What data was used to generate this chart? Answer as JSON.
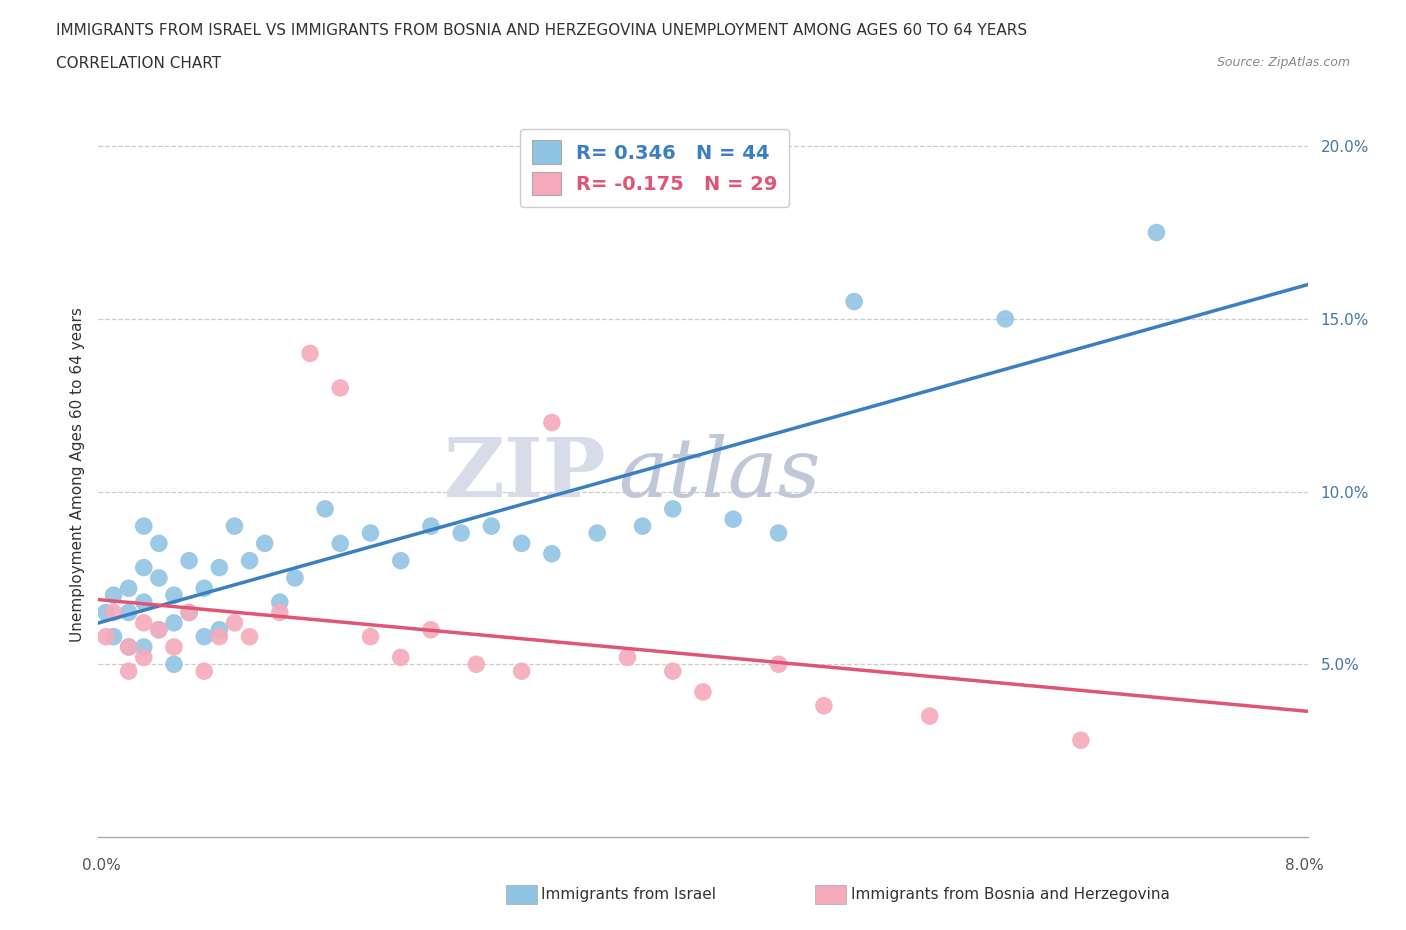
{
  "title_line1": "IMMIGRANTS FROM ISRAEL VS IMMIGRANTS FROM BOSNIA AND HERZEGOVINA UNEMPLOYMENT AMONG AGES 60 TO 64 YEARS",
  "title_line2": "CORRELATION CHART",
  "source": "Source: ZipAtlas.com",
  "ylabel": "Unemployment Among Ages 60 to 64 years",
  "xlim": [
    0.0,
    0.08
  ],
  "ylim": [
    0.0,
    0.21
  ],
  "yticks": [
    0.05,
    0.1,
    0.15,
    0.2
  ],
  "ytick_labels": [
    "5.0%",
    "10.0%",
    "15.0%",
    "20.0%"
  ],
  "xtick_labels": [
    "0.0%",
    "8.0%"
  ],
  "israel_color": "#90C4E4",
  "bosnia_color": "#F5AABB",
  "israel_line_color": "#3A7FC1",
  "bosnia_line_color": "#E05575",
  "israel_R": 0.346,
  "israel_N": 44,
  "bosnia_R": -0.175,
  "bosnia_N": 29,
  "legend_israel": "Immigrants from Israel",
  "legend_bosnia": "Immigrants from Bosnia and Herzegovina",
  "watermark_ZIP": "ZIP",
  "watermark_atlas": "atlas",
  "israel_x": [
    0.0005,
    0.001,
    0.001,
    0.002,
    0.002,
    0.002,
    0.003,
    0.003,
    0.003,
    0.003,
    0.004,
    0.004,
    0.004,
    0.005,
    0.005,
    0.005,
    0.006,
    0.006,
    0.007,
    0.007,
    0.008,
    0.008,
    0.009,
    0.01,
    0.011,
    0.012,
    0.013,
    0.015,
    0.016,
    0.018,
    0.02,
    0.022,
    0.024,
    0.026,
    0.028,
    0.03,
    0.033,
    0.036,
    0.038,
    0.042,
    0.045,
    0.05,
    0.06,
    0.07
  ],
  "israel_y": [
    0.065,
    0.07,
    0.058,
    0.072,
    0.065,
    0.055,
    0.09,
    0.078,
    0.068,
    0.055,
    0.085,
    0.075,
    0.06,
    0.07,
    0.062,
    0.05,
    0.08,
    0.065,
    0.072,
    0.058,
    0.078,
    0.06,
    0.09,
    0.08,
    0.085,
    0.068,
    0.075,
    0.095,
    0.085,
    0.088,
    0.08,
    0.09,
    0.088,
    0.09,
    0.085,
    0.082,
    0.088,
    0.09,
    0.095,
    0.092,
    0.088,
    0.155,
    0.15,
    0.175
  ],
  "bosnia_x": [
    0.0005,
    0.001,
    0.002,
    0.002,
    0.003,
    0.003,
    0.004,
    0.005,
    0.006,
    0.007,
    0.008,
    0.009,
    0.01,
    0.012,
    0.014,
    0.016,
    0.018,
    0.02,
    0.022,
    0.025,
    0.028,
    0.03,
    0.035,
    0.038,
    0.04,
    0.045,
    0.048,
    0.055,
    0.065
  ],
  "bosnia_y": [
    0.058,
    0.065,
    0.055,
    0.048,
    0.062,
    0.052,
    0.06,
    0.055,
    0.065,
    0.048,
    0.058,
    0.062,
    0.058,
    0.065,
    0.14,
    0.13,
    0.058,
    0.052,
    0.06,
    0.05,
    0.048,
    0.12,
    0.052,
    0.048,
    0.042,
    0.05,
    0.038,
    0.035,
    0.028
  ]
}
